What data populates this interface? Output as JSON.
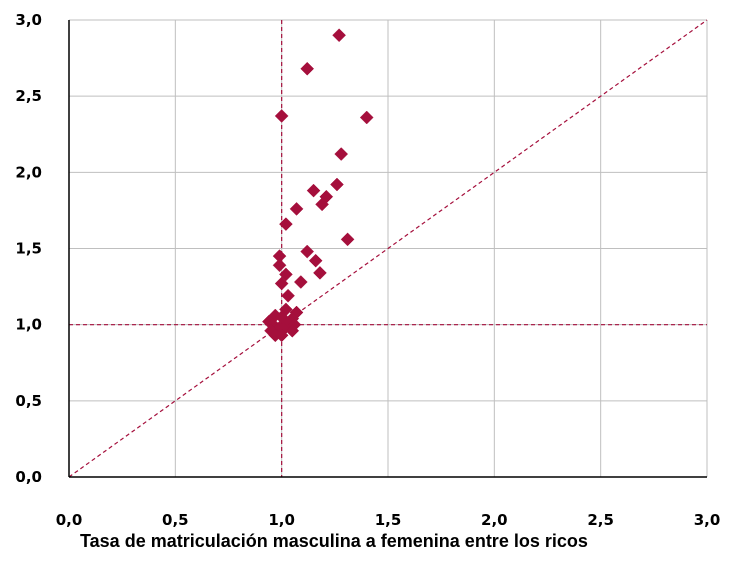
{
  "chart_data": {
    "type": "scatter",
    "title": "",
    "xlabel": "Tasa de matriculación masculina a femenina entre los ricos",
    "ylabel": "",
    "xlim": [
      0,
      3
    ],
    "ylim": [
      0,
      3
    ],
    "x_ticks": [
      "0,0",
      "0,5",
      "1,0",
      "1,5",
      "2,0",
      "2,5",
      "3,0"
    ],
    "y_ticks": [
      "0,0",
      "0,5",
      "1,0",
      "1,5",
      "2,0",
      "2,5",
      "3,0"
    ],
    "grid": true,
    "legend": "none",
    "colors": {
      "marker": "#A50F3C",
      "reference_lines": "#A50F3C",
      "grid": "#BFBFBF",
      "axis": "#000000"
    },
    "reference_lines": [
      {
        "type": "vertical",
        "x": 1.0
      },
      {
        "type": "horizontal",
        "y": 1.0
      },
      {
        "type": "diagonal",
        "from": [
          0,
          0
        ],
        "to": [
          3,
          3
        ]
      }
    ],
    "series": [
      {
        "marker": "diamond",
        "points": [
          [
            1.27,
            2.9
          ],
          [
            1.12,
            2.68
          ],
          [
            1.0,
            2.37
          ],
          [
            1.4,
            2.36
          ],
          [
            1.28,
            2.12
          ],
          [
            1.26,
            1.92
          ],
          [
            1.15,
            1.88
          ],
          [
            1.21,
            1.84
          ],
          [
            1.19,
            1.79
          ],
          [
            1.07,
            1.76
          ],
          [
            1.02,
            1.66
          ],
          [
            1.31,
            1.56
          ],
          [
            1.12,
            1.48
          ],
          [
            0.99,
            1.45
          ],
          [
            1.16,
            1.42
          ],
          [
            0.99,
            1.39
          ],
          [
            1.18,
            1.34
          ],
          [
            1.02,
            1.33
          ],
          [
            1.09,
            1.28
          ],
          [
            1.0,
            1.27
          ],
          [
            1.03,
            1.19
          ],
          [
            1.02,
            1.1
          ],
          [
            1.07,
            1.08
          ],
          [
            0.97,
            1.06
          ],
          [
            1.0,
            1.05
          ],
          [
            1.05,
            1.04
          ],
          [
            0.94,
            1.02
          ],
          [
            0.96,
            1.0
          ],
          [
            1.03,
            1.01
          ],
          [
            1.06,
            1.0
          ],
          [
            0.99,
            0.98
          ],
          [
            0.95,
            0.96
          ],
          [
            1.01,
            0.97
          ],
          [
            1.05,
            0.96
          ],
          [
            0.97,
            0.93
          ],
          [
            1.0,
            0.93
          ]
        ]
      }
    ]
  }
}
